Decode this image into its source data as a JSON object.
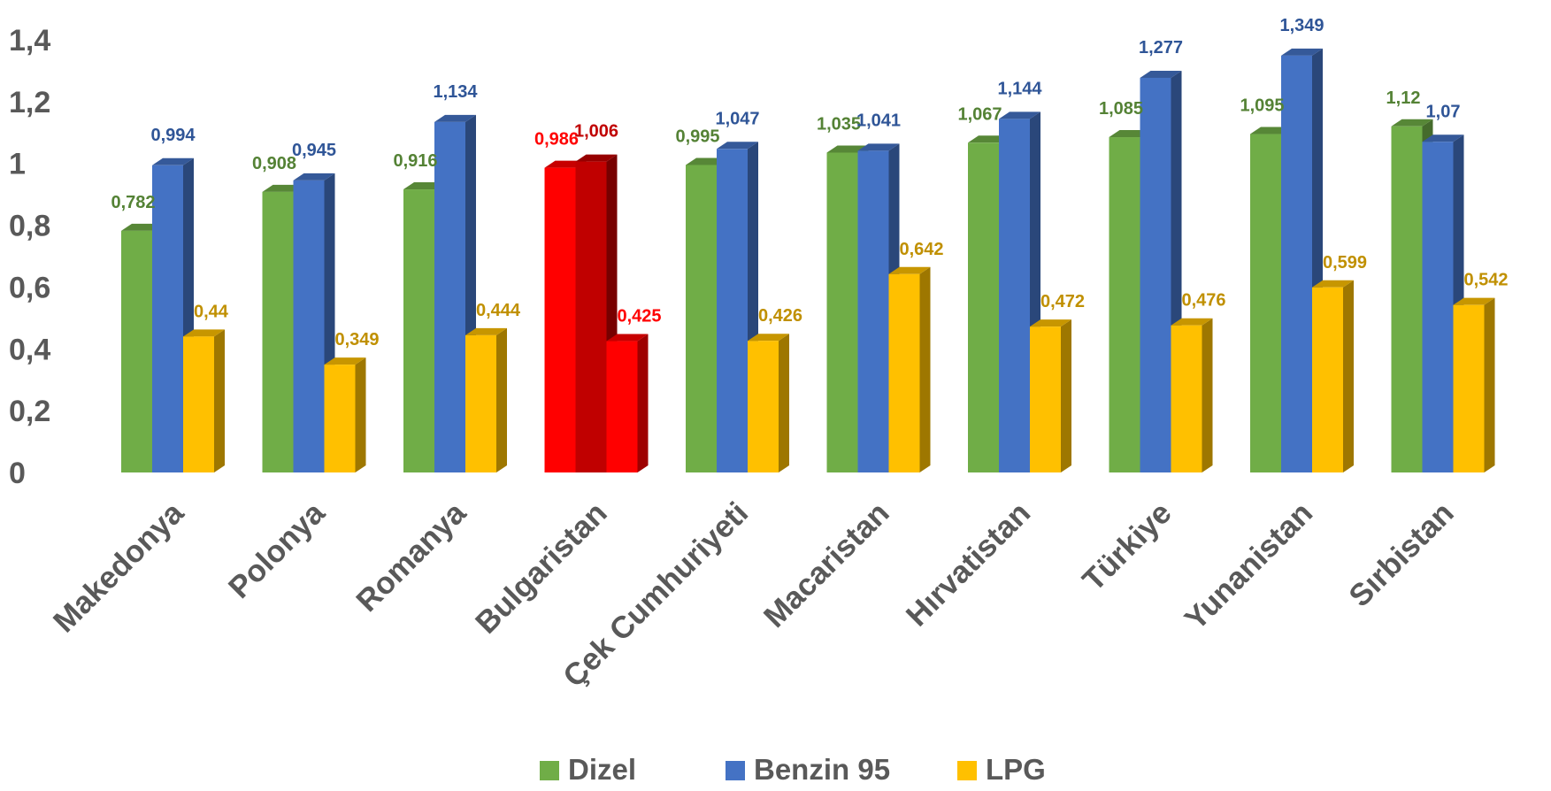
{
  "chart_data": {
    "type": "bar",
    "categories": [
      "Makedonya",
      "Polonya",
      "Romanya",
      "Bulgaristan",
      "Çek Cumhuriyeti",
      "Macaristan",
      "Hırvatistan",
      "Türkiye",
      "Yunanistan",
      "Sırbistan"
    ],
    "series": [
      {
        "name": "Dizel",
        "color": "#70AD47",
        "values": [
          0.782,
          0.908,
          0.916,
          0.986,
          0.995,
          1.035,
          1.067,
          1.085,
          1.095,
          1.12
        ],
        "labels": [
          "0,782",
          "0,908",
          "0,916",
          "0,986",
          "0,995",
          "1,035",
          "1,067",
          "1,085",
          "1,095",
          "1,12"
        ]
      },
      {
        "name": "Benzin 95",
        "color": "#4472C4",
        "values": [
          0.994,
          0.945,
          1.134,
          1.006,
          1.047,
          1.041,
          1.144,
          1.277,
          1.349,
          1.07
        ],
        "labels": [
          "0,994",
          "0,945",
          "1,134",
          "1,006",
          "1,047",
          "1,041",
          "1,144",
          "1,277",
          "1,349",
          "1,07"
        ]
      },
      {
        "name": "LPG",
        "color": "#FFC000",
        "values": [
          0.44,
          0.349,
          0.444,
          0.425,
          0.426,
          0.642,
          0.472,
          0.476,
          0.599,
          0.542
        ],
        "labels": [
          "0,44",
          "0,349",
          "0,444",
          "0,425",
          "0,426",
          "0,642",
          "0,472",
          "0,476",
          "0,599",
          "0,542"
        ]
      }
    ],
    "highlight": {
      "category": "Bulgaristan",
      "colors": [
        "#FF0000",
        "#C00000",
        "#FF0000"
      ],
      "label_colors": [
        "#FF0000",
        "#C00000",
        "#FF0000"
      ]
    },
    "label_colors": [
      "#548235",
      "#2F5597",
      "#C09000"
    ],
    "yticks": [
      "0",
      "0,2",
      "0,4",
      "0,6",
      "0,8",
      "1",
      "1,2",
      "1,4"
    ],
    "ylim": [
      0,
      1.4
    ],
    "legend_position": "bottom",
    "grid": false,
    "style": "3d-clustered-column"
  }
}
